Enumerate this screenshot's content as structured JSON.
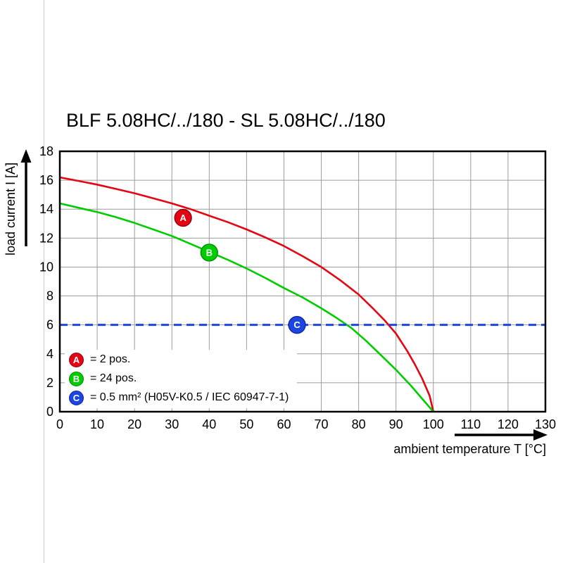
{
  "page": {
    "background_color": "#ffffff",
    "edge_line_color": "#cccccc"
  },
  "chart_data": {
    "type": "line",
    "title": "BLF 5.08HC/../180 - SL 5.08HC/../180",
    "xlabel": "ambient temperature T [°C]",
    "ylabel": "load current I [A]",
    "xlim": [
      0,
      130
    ],
    "ylim": [
      0,
      18
    ],
    "x_tick_step": 10,
    "y_tick_step": 2,
    "x_ticks": [
      0,
      10,
      20,
      30,
      40,
      50,
      60,
      70,
      80,
      90,
      100,
      110,
      120,
      130
    ],
    "y_ticks": [
      0,
      2,
      4,
      6,
      8,
      10,
      12,
      14,
      16,
      18
    ],
    "grid": true,
    "grid_color": "#9c9c9c",
    "frame_color": "#000000",
    "legend_position": "bottom-left-inside",
    "series": [
      {
        "id": "A",
        "legend_label": "= 2 pos.",
        "color": "#e30613",
        "edge_color": "#8f0010",
        "marker": {
          "x": 33,
          "y": 13.4
        },
        "points": [
          [
            0,
            16.2
          ],
          [
            5,
            15.95
          ],
          [
            10,
            15.7
          ],
          [
            15,
            15.4
          ],
          [
            20,
            15.1
          ],
          [
            25,
            14.75
          ],
          [
            30,
            14.4
          ],
          [
            35,
            14.0
          ],
          [
            40,
            13.55
          ],
          [
            45,
            13.1
          ],
          [
            50,
            12.6
          ],
          [
            55,
            12.05
          ],
          [
            60,
            11.45
          ],
          [
            65,
            10.75
          ],
          [
            70,
            10.0
          ],
          [
            75,
            9.1
          ],
          [
            80,
            8.1
          ],
          [
            84,
            7.1
          ],
          [
            87,
            6.3
          ],
          [
            90,
            5.4
          ],
          [
            93,
            4.2
          ],
          [
            95,
            3.3
          ],
          [
            97,
            2.3
          ],
          [
            99,
            1.1
          ],
          [
            100,
            0
          ]
        ]
      },
      {
        "id": "B",
        "legend_label": "= 24 pos.",
        "color": "#00cc00",
        "edge_color": "#008a00",
        "marker": {
          "x": 40,
          "y": 11.0
        },
        "points": [
          [
            0,
            14.4
          ],
          [
            5,
            14.1
          ],
          [
            10,
            13.8
          ],
          [
            15,
            13.45
          ],
          [
            20,
            13.05
          ],
          [
            25,
            12.6
          ],
          [
            30,
            12.15
          ],
          [
            35,
            11.6
          ],
          [
            40,
            11.05
          ],
          [
            45,
            10.5
          ],
          [
            50,
            9.9
          ],
          [
            55,
            9.25
          ],
          [
            60,
            8.55
          ],
          [
            65,
            7.9
          ],
          [
            70,
            7.15
          ],
          [
            74,
            6.5
          ],
          [
            78,
            5.8
          ],
          [
            82,
            4.9
          ],
          [
            86,
            3.9
          ],
          [
            90,
            2.9
          ],
          [
            94,
            1.8
          ],
          [
            97,
            0.9
          ],
          [
            100,
            0
          ]
        ]
      },
      {
        "id": "C",
        "legend_label": "= 0.5 mm² (H05V-K0.5 / IEC 60947-7-1)",
        "color": "#1d46e0",
        "edge_color": "#10249c",
        "marker": {
          "x": 63.5,
          "y": 6
        },
        "hline_y": 6,
        "style": "dashed"
      }
    ]
  }
}
